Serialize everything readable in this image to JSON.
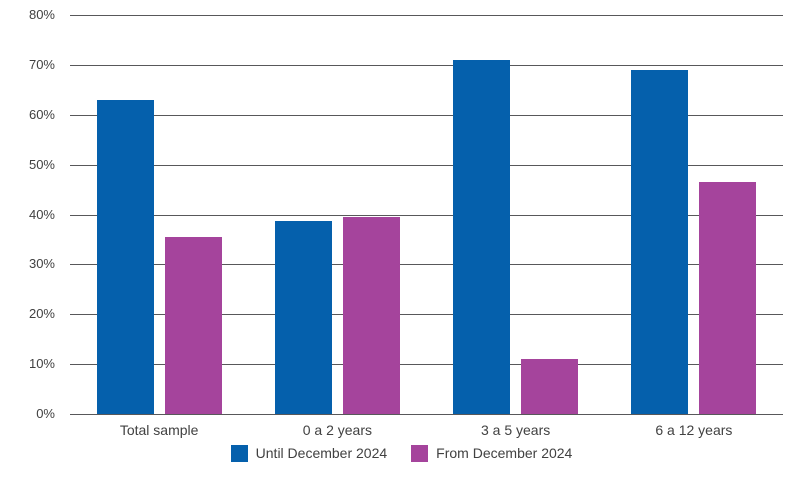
{
  "chart_data": {
    "type": "bar",
    "title": "",
    "xlabel": "",
    "ylabel": "",
    "categories": [
      "Total sample",
      "0 a 2 years",
      "3 a 5 years",
      "6 a 12 years"
    ],
    "series": [
      {
        "name": "Until December 2024",
        "color": "#0560ac",
        "values": [
          63,
          38.7,
          71,
          69
        ]
      },
      {
        "name": "From December 2024",
        "color": "#a5449c",
        "values": [
          35.4,
          39.5,
          11,
          46.5
        ]
      }
    ],
    "ylim": [
      0,
      80
    ],
    "ytick_values": [
      0,
      10,
      20,
      30,
      40,
      50,
      60,
      70,
      80
    ],
    "yticks": [
      "0%",
      "10%",
      "20%",
      "30%",
      "40%",
      "50%",
      "60%",
      "70%",
      "80%"
    ],
    "grid": true,
    "legend_position": "bottom"
  },
  "colors": {
    "grid": "#58585a",
    "axis": "#58585a",
    "text": "#414141",
    "background": "#ffffff"
  }
}
